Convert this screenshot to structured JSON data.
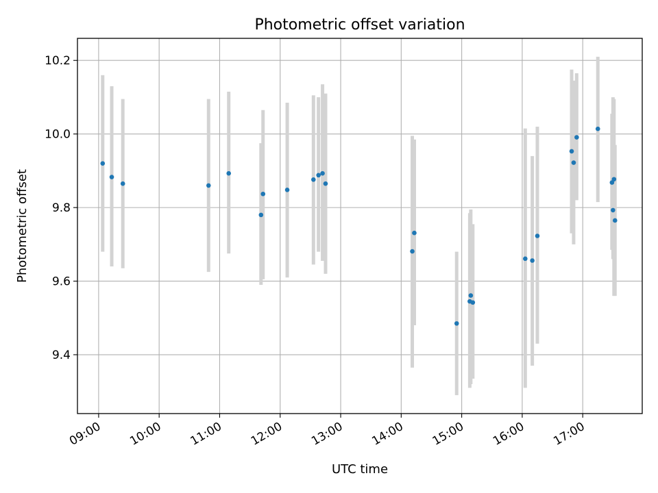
{
  "chart_data": {
    "type": "scatter",
    "title": "Photometric offset variation",
    "xlabel": "UTC time",
    "ylabel": "Photometric offset",
    "x_unit": "hours (UTC)",
    "xlim": [
      "08:39",
      "17:59"
    ],
    "ylim": [
      9.24,
      10.26
    ],
    "x_ticks": [
      "09:00",
      "10:00",
      "11:00",
      "12:00",
      "13:00",
      "14:00",
      "15:00",
      "16:00",
      "17:00"
    ],
    "y_ticks": [
      "9.4",
      "9.6",
      "9.8",
      "10.0",
      "10.2"
    ],
    "grid": true,
    "colors": {
      "point": "#1f77b4",
      "errorbar": "#d3d3d3",
      "grid": "#b0b0b0"
    },
    "points": [
      {
        "x": "09:04",
        "y": 9.92,
        "lo": 9.68,
        "hi": 10.16
      },
      {
        "x": "09:13",
        "y": 9.883,
        "lo": 9.64,
        "hi": 10.13
      },
      {
        "x": "09:24",
        "y": 9.865,
        "lo": 9.635,
        "hi": 10.095
      },
      {
        "x": "10:49",
        "y": 9.86,
        "lo": 9.625,
        "hi": 10.095
      },
      {
        "x": "11:09",
        "y": 9.893,
        "lo": 9.675,
        "hi": 10.115
      },
      {
        "x": "11:41",
        "y": 9.78,
        "lo": 9.59,
        "hi": 9.975
      },
      {
        "x": "11:43",
        "y": 9.837,
        "lo": 9.605,
        "hi": 10.065
      },
      {
        "x": "12:07",
        "y": 9.848,
        "lo": 9.61,
        "hi": 10.085
      },
      {
        "x": "12:33",
        "y": 9.876,
        "lo": 9.645,
        "hi": 10.105
      },
      {
        "x": "12:38",
        "y": 9.888,
        "lo": 9.68,
        "hi": 10.1
      },
      {
        "x": "12:42",
        "y": 9.893,
        "lo": 9.655,
        "hi": 10.135
      },
      {
        "x": "12:45",
        "y": 9.865,
        "lo": 9.62,
        "hi": 10.11
      },
      {
        "x": "14:11",
        "y": 9.681,
        "lo": 9.365,
        "hi": 9.995
      },
      {
        "x": "14:13",
        "y": 9.731,
        "lo": 9.48,
        "hi": 9.985
      },
      {
        "x": "14:55",
        "y": 9.485,
        "lo": 9.29,
        "hi": 9.68
      },
      {
        "x": "15:08",
        "y": 9.545,
        "lo": 9.31,
        "hi": 9.785
      },
      {
        "x": "15:09",
        "y": 9.561,
        "lo": 9.32,
        "hi": 9.795
      },
      {
        "x": "15:11",
        "y": 9.542,
        "lo": 9.335,
        "hi": 9.755
      },
      {
        "x": "16:03",
        "y": 9.661,
        "lo": 9.31,
        "hi": 10.015
      },
      {
        "x": "16:10",
        "y": 9.656,
        "lo": 9.37,
        "hi": 9.94
      },
      {
        "x": "16:15",
        "y": 9.723,
        "lo": 9.43,
        "hi": 10.02
      },
      {
        "x": "16:49",
        "y": 9.953,
        "lo": 9.73,
        "hi": 10.175
      },
      {
        "x": "16:51",
        "y": 9.922,
        "lo": 9.7,
        "hi": 10.145
      },
      {
        "x": "16:54",
        "y": 9.991,
        "lo": 9.82,
        "hi": 10.165
      },
      {
        "x": "17:15",
        "y": 10.014,
        "lo": 9.815,
        "hi": 10.21
      },
      {
        "x": "17:29",
        "y": 9.868,
        "lo": 9.685,
        "hi": 10.055
      },
      {
        "x": "17:30",
        "y": 9.793,
        "lo": 9.66,
        "hi": 10.1
      },
      {
        "x": "17:31",
        "y": 9.877,
        "lo": 9.56,
        "hi": 10.095
      },
      {
        "x": "17:32",
        "y": 9.765,
        "lo": 9.56,
        "hi": 9.97
      }
    ]
  }
}
